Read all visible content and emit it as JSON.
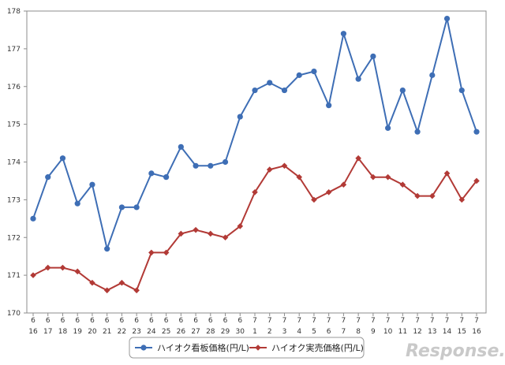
{
  "chart_data": {
    "type": "line",
    "x": [
      [
        "6",
        "16"
      ],
      [
        "6",
        "17"
      ],
      [
        "6",
        "18"
      ],
      [
        "6",
        "19"
      ],
      [
        "6",
        "20"
      ],
      [
        "6",
        "21"
      ],
      [
        "6",
        "22"
      ],
      [
        "6",
        "23"
      ],
      [
        "6",
        "24"
      ],
      [
        "6",
        "25"
      ],
      [
        "6",
        "26"
      ],
      [
        "6",
        "27"
      ],
      [
        "6",
        "28"
      ],
      [
        "6",
        "29"
      ],
      [
        "6",
        "30"
      ],
      [
        "7",
        "1"
      ],
      [
        "7",
        "2"
      ],
      [
        "7",
        "3"
      ],
      [
        "7",
        "4"
      ],
      [
        "7",
        "5"
      ],
      [
        "7",
        "6"
      ],
      [
        "7",
        "7"
      ],
      [
        "7",
        "8"
      ],
      [
        "7",
        "9"
      ],
      [
        "7",
        "10"
      ],
      [
        "7",
        "11"
      ],
      [
        "7",
        "12"
      ],
      [
        "7",
        "13"
      ],
      [
        "7",
        "14"
      ],
      [
        "7",
        "15"
      ],
      [
        "7",
        "16"
      ]
    ],
    "series": [
      {
        "name": "ハイオク看板価格(円/L)",
        "color": "#3e6eb5",
        "marker": "circle",
        "values": [
          172.5,
          173.6,
          174.1,
          172.9,
          173.4,
          171.7,
          172.8,
          172.8,
          173.7,
          173.6,
          174.4,
          173.9,
          173.9,
          174.0,
          175.2,
          175.9,
          176.1,
          175.9,
          176.3,
          176.4,
          175.5,
          177.4,
          176.2,
          176.8,
          174.9,
          175.9,
          174.8,
          176.3,
          177.8,
          175.9,
          174.8
        ]
      },
      {
        "name": "ハイオク実売価格(円/L)",
        "color": "#b23a36",
        "marker": "diamond",
        "values": [
          171.0,
          171.2,
          171.2,
          171.1,
          170.8,
          170.6,
          170.8,
          170.6,
          171.6,
          171.6,
          172.1,
          172.2,
          172.1,
          172.0,
          172.3,
          173.2,
          173.8,
          173.9,
          173.6,
          173.0,
          173.2,
          173.4,
          174.1,
          173.6,
          173.6,
          173.4,
          173.1,
          173.1,
          173.7,
          173.0,
          173.5
        ]
      }
    ],
    "ylim": [
      170,
      178
    ],
    "yticks": [
      "170",
      "171",
      "172",
      "173",
      "174",
      "175",
      "176",
      "177",
      "178"
    ],
    "grid": false,
    "legend_position": "bottom"
  },
  "watermark": "Response."
}
